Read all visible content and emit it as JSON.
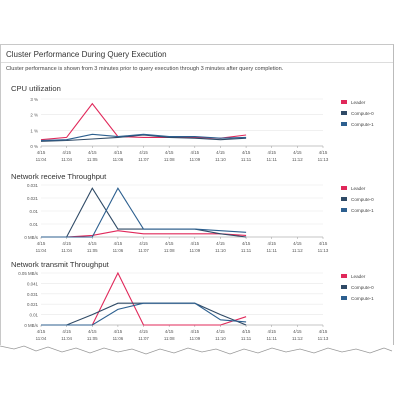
{
  "panel": {
    "title": "Cluster Performance During Query Execution",
    "description": "Cluster performance is shown from 3 minutes prior to query execution through 3 minutes after query completion."
  },
  "colors": {
    "leader": "#e0285a",
    "compute0": "#2f4a66",
    "compute1": "#2c5f8f",
    "grid": "#e8e8e8",
    "axis": "#999999"
  },
  "chart_data": [
    {
      "type": "line",
      "title": "CPU utilization",
      "x_dates": [
        "4/15",
        "4/15",
        "4/15",
        "4/15",
        "4/15",
        "4/15",
        "4/15",
        "4/15",
        "4/15",
        "4/15",
        "4/15",
        "4/15"
      ],
      "x_times": [
        "11:04",
        "11:04",
        "11:05",
        "11:06",
        "11:07",
        "11:08",
        "11:09",
        "11:10",
        "11:11",
        "11:11",
        "11:12",
        "11:13"
      ],
      "y_ticks": [
        "0 %",
        "1 %",
        "2 %",
        "3 %"
      ],
      "ylim": [
        0,
        3
      ],
      "series": [
        {
          "name": "Leader",
          "values": [
            0.4,
            0.55,
            2.7,
            0.6,
            0.55,
            0.55,
            0.55,
            0.5,
            0.7
          ]
        },
        {
          "name": "Compute-0",
          "values": [
            0.3,
            0.35,
            0.45,
            0.55,
            0.7,
            0.55,
            0.5,
            0.4,
            0.5
          ]
        },
        {
          "name": "Compute-1",
          "values": [
            0.35,
            0.4,
            0.75,
            0.6,
            0.75,
            0.6,
            0.6,
            0.5,
            0.55
          ]
        }
      ]
    },
    {
      "type": "line",
      "title": "Network receive Throughput",
      "x_dates": [
        "4/15",
        "4/15",
        "4/15",
        "4/15",
        "4/15",
        "4/15",
        "4/15",
        "4/15",
        "4/15",
        "4/15",
        "4/15",
        "4/15"
      ],
      "x_times": [
        "11:04",
        "11:04",
        "11:05",
        "11:06",
        "11:07",
        "11:08",
        "11:09",
        "11:10",
        "11:11",
        "11:11",
        "11:12",
        "11:13"
      ],
      "y_ticks": [
        "0 MB/s",
        "0.01",
        "0.01",
        "0.021",
        "0.031"
      ],
      "ylim": [
        0,
        0.033
      ],
      "series": [
        {
          "name": "Leader",
          "values": [
            0.0,
            0.0,
            0.001,
            0.004,
            0.002,
            0.002,
            0.002,
            0.002,
            0.001
          ]
        },
        {
          "name": "Compute-0",
          "values": [
            0.0,
            0.0,
            0.031,
            0.005,
            0.005,
            0.005,
            0.005,
            0.002,
            0.0
          ]
        },
        {
          "name": "Compute-1",
          "values": [
            0.0,
            0.0,
            0.0,
            0.031,
            0.005,
            0.005,
            0.005,
            0.004,
            0.003
          ]
        }
      ]
    },
    {
      "type": "line",
      "title": "Network transmit Throughput",
      "x_dates": [
        "4/15",
        "4/15",
        "4/15",
        "4/15",
        "4/15",
        "4/15",
        "4/15",
        "4/15",
        "4/15",
        "4/15",
        "4/15",
        "4/15"
      ],
      "x_times": [
        "11:04",
        "11:04",
        "11:05",
        "11:06",
        "11:07",
        "11:08",
        "11:09",
        "11:10",
        "11:11",
        "11:11",
        "11:12",
        "11:13"
      ],
      "y_ticks": [
        "0 MB/s",
        "0.01",
        "0.021",
        "0.031",
        "0.041",
        "0.05 MB/s"
      ],
      "ylim": [
        0,
        0.05
      ],
      "series": [
        {
          "name": "Leader",
          "values": [
            0.0,
            0.0,
            0.0,
            0.05,
            0.0,
            0.0,
            0.0,
            0.0,
            0.008
          ]
        },
        {
          "name": "Compute-0",
          "values": [
            0.0,
            0.0,
            0.01,
            0.021,
            0.021,
            0.021,
            0.021,
            0.01,
            0.0
          ]
        },
        {
          "name": "Compute-1",
          "values": [
            0.0,
            0.0,
            0.0,
            0.015,
            0.021,
            0.021,
            0.021,
            0.005,
            0.003
          ]
        }
      ]
    }
  ],
  "legend": [
    "Leader",
    "Compute-0",
    "Compute-1"
  ]
}
